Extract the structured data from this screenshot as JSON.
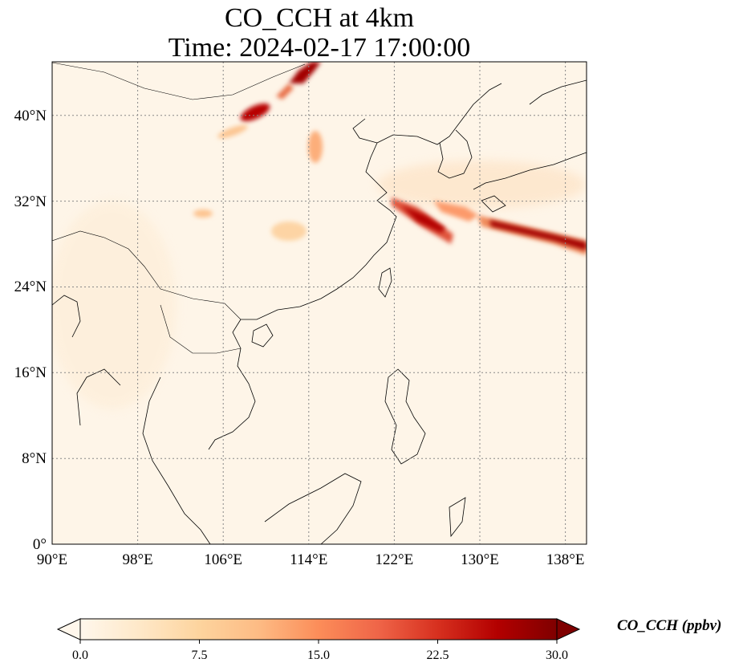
{
  "title": {
    "line1": "CO_CCH at 4km",
    "line2": "Time: 2024-02-17 17:00:00"
  },
  "map": {
    "type": "heatmap",
    "variable": "CO_CCH",
    "level": "4km",
    "lon_range": [
      90,
      140
    ],
    "lat_range": [
      0,
      45
    ],
    "grid": true,
    "x_ticks": [
      "90°E",
      "98°E",
      "106°E",
      "114°E",
      "122°E",
      "130°E",
      "138°E"
    ],
    "y_ticks": [
      "0°",
      "8°N",
      "16°N",
      "24°N",
      "32°N",
      "40°N"
    ],
    "colormap": "OrRd",
    "plumes": [
      {
        "lon": 114.5,
        "lat": 43.5,
        "value": 28
      },
      {
        "lon": 115.0,
        "lat": 42.8,
        "value": 24
      },
      {
        "lon": 109.5,
        "lat": 40.0,
        "value": 20
      },
      {
        "lon": 107.5,
        "lat": 38.5,
        "value": 6
      },
      {
        "lon": 115.0,
        "lat": 37.2,
        "value": 9
      },
      {
        "lon": 104.5,
        "lat": 31.0,
        "value": 7
      },
      {
        "lon": 113.5,
        "lat": 29.0,
        "value": 6
      },
      {
        "lon": 124.5,
        "lat": 30.5,
        "value": 24
      },
      {
        "lon": 127.0,
        "lat": 28.5,
        "value": 20
      },
      {
        "lon": 129.0,
        "lat": 31.0,
        "value": 10
      },
      {
        "lon": 134.0,
        "lat": 29.2,
        "value": 28
      },
      {
        "lon": 138.0,
        "lat": 28.3,
        "value": 27
      }
    ]
  },
  "colorbar": {
    "label": "CO_CCH (ppbv)",
    "min": 0.0,
    "max": 30.0,
    "ticks": [
      "0.0",
      "7.5",
      "15.0",
      "22.5",
      "30.0"
    ],
    "extend": "both",
    "colors": [
      "#fff7ec",
      "#fee8c8",
      "#fdd49e",
      "#fdbb84",
      "#fc8d59",
      "#ef6548",
      "#d7301f",
      "#b30000",
      "#7f0000"
    ]
  }
}
